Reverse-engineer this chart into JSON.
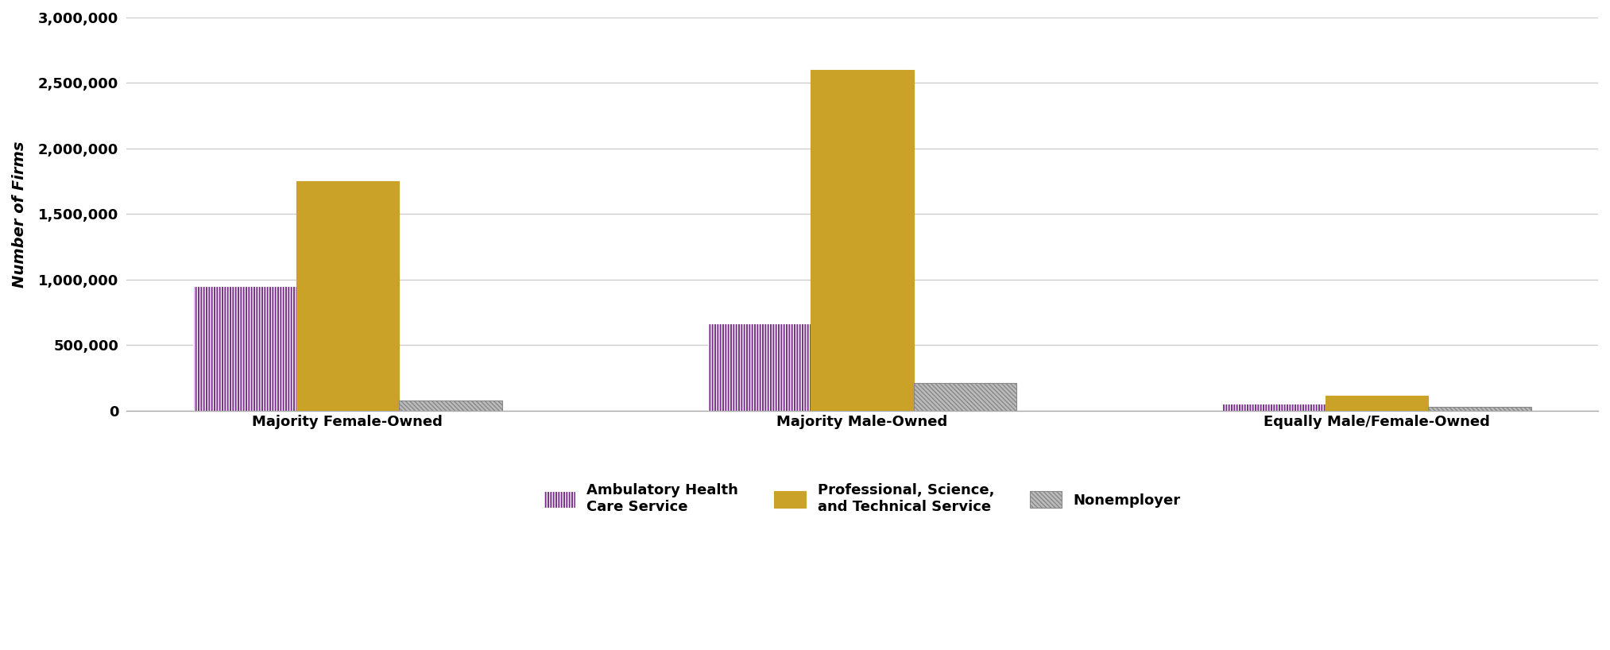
{
  "categories": [
    "Majority Female-Owned",
    "Majority Male-Owned",
    "Equally Male/Female-Owned"
  ],
  "series": {
    "Ambulatory Health\nCare Service": [
      950000,
      665000,
      55000
    ],
    "Professional, Science,\nand Technical Service": [
      1750000,
      2600000,
      115000
    ],
    "Nonemployer": [
      75000,
      210000,
      30000
    ]
  },
  "colors": {
    "Ambulatory Health\nCare Service": "#7B2D8B",
    "Professional, Science,\nand Technical Service": "#C9A227",
    "Nonemployer": "#BBBBBB"
  },
  "hatches": {
    "Ambulatory Health\nCare Service": "|||||",
    "Professional, Science,\nand Technical Service": "",
    "Nonemployer": "\\\\\\\\\\\\"
  },
  "hatch_colors": {
    "Ambulatory Health\nCare Service": "#FFFFFF",
    "Professional, Science,\nand Technical Service": "#C9A227",
    "Nonemployer": "#888888"
  },
  "legend_labels": [
    "Ambulatory Health\nCare Service",
    "Professional, Science,\nand Technical Service",
    "Nonemployer"
  ],
  "ylabel": "Number of Firms",
  "ylim": [
    0,
    3000000
  ],
  "yticks": [
    0,
    500000,
    1000000,
    1500000,
    2000000,
    2500000,
    3000000
  ],
  "bar_width": 0.2,
  "background_color": "#FFFFFF",
  "grid_color": "#CCCCCC",
  "axis_fontsize": 14,
  "tick_fontsize": 13,
  "legend_fontsize": 13
}
